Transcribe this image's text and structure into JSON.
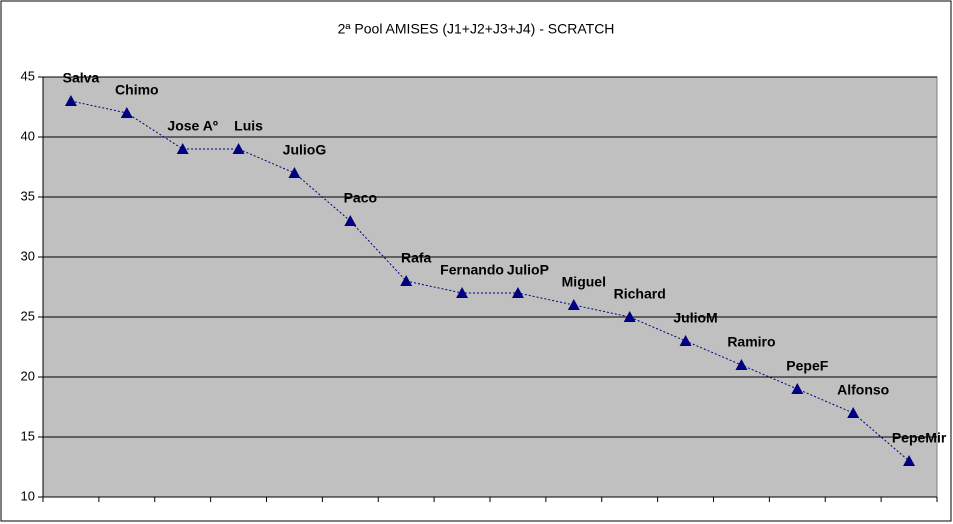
{
  "chart_data": {
    "type": "line",
    "title": "2ª Pool AMISES (J1+J2+J3+J4) - SCRATCH",
    "categories": [
      "Salva",
      "Chimo",
      "Jose Aº",
      "Luis",
      "JulioG",
      "Paco",
      "Rafa",
      "Fernando",
      "JulioP",
      "Miguel",
      "Richard",
      "JulioM",
      "Ramiro",
      "PepeF",
      "Alfonso",
      "PepeMir"
    ],
    "series": [
      {
        "color": "#000080",
        "values": [
          43,
          42,
          39,
          39,
          37,
          33,
          28,
          27,
          27,
          26,
          25,
          23,
          21,
          19,
          17,
          13
        ]
      }
    ],
    "ylim": [
      10,
      45
    ],
    "yticks": [
      10,
      15,
      20,
      25,
      30,
      35,
      40,
      45
    ],
    "grid": true
  }
}
